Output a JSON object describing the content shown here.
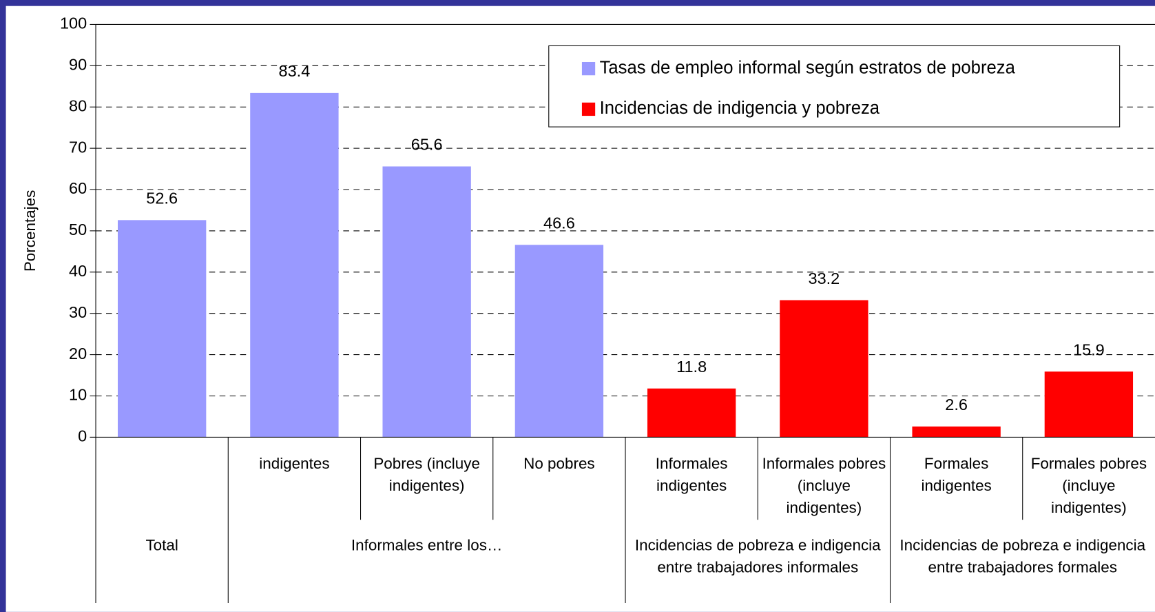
{
  "chart_data": {
    "type": "bar",
    "y_label": "Porcentajes",
    "groups": [
      {
        "label": "Total",
        "categories": [
          null
        ]
      },
      {
        "label": "Informales entre los…",
        "categories": [
          "indigentes",
          "Pobres (incluye indigentes)",
          "No pobres"
        ]
      },
      {
        "label": "Incidencias de pobreza e indigencia entre trabajadores informales",
        "categories": [
          "Informales indigentes",
          "Informales pobres (incluye indigentes)"
        ]
      },
      {
        "label": "Incidencias de pobreza e indigencia entre trabajadores formales",
        "categories": [
          "Formales indigentes",
          "Formales pobres (incluye indigentes)"
        ]
      }
    ],
    "series": [
      {
        "name": "Tasas de empleo informal según estratos de pobreza",
        "color": "#9999ff",
        "values": [
          52.6,
          83.4,
          65.6,
          46.6,
          null,
          null,
          null,
          null
        ]
      },
      {
        "name": "Incidencias de indigencia y pobreza",
        "color": "#ff0000",
        "values": [
          null,
          null,
          null,
          null,
          11.8,
          33.2,
          2.6,
          15.9
        ]
      }
    ],
    "ylim": [
      0,
      100
    ],
    "yticks": [
      0,
      10,
      20,
      30,
      40,
      50,
      60,
      70,
      80,
      90,
      100
    ],
    "grid": true,
    "legend": "top-right"
  }
}
